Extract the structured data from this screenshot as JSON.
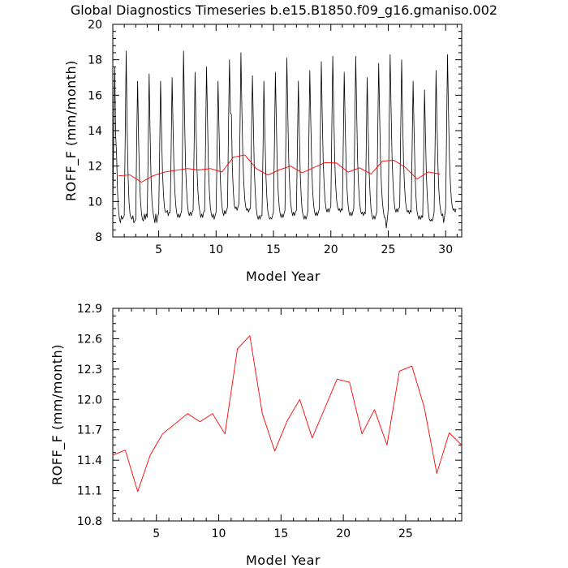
{
  "title": "Global Diagnostics Timeseries b.e15.B1850.f09_g16.gmaniso.002",
  "colors": {
    "monthly": "#000000",
    "annual": "#ff0000",
    "axes": "#000000"
  },
  "chart_data": [
    {
      "type": "line",
      "xlabel": "Model Year",
      "ylabel": "ROFF_F (mm/month)",
      "xlim": [
        1,
        31.4
      ],
      "ylim": [
        8,
        20
      ],
      "xticks": [
        5,
        10,
        15,
        20,
        25,
        30
      ],
      "yticks": [
        8,
        10,
        12,
        14,
        16,
        18,
        20
      ],
      "grid": false,
      "series": [
        {
          "color": "#000000",
          "x_start": 1.0,
          "x_step": 0.08333,
          "values": [
            9.3,
            14.0,
            17.6,
            13.8,
            12.6,
            10.5,
            9.5,
            9.0,
            8.8,
            9.2,
            9.0,
            9.1,
            9.2,
            13.6,
            18.5,
            14.1,
            11.4,
            10.0,
            9.3,
            9.1,
            9.0,
            9.2,
            8.8,
            8.9,
            9.0,
            13.6,
            16.8,
            13.5,
            11.2,
            10.0,
            9.3,
            9.0,
            8.9,
            9.3,
            9.0,
            9.3,
            9.1,
            12.8,
            17.2,
            13.8,
            11.4,
            10.0,
            9.4,
            9.1,
            8.8,
            9.3,
            8.8,
            9.2,
            9.3,
            13.0,
            16.8,
            13.9,
            11.6,
            10.4,
            9.7,
            9.4,
            9.4,
            9.5,
            9.2,
            9.4,
            9.4,
            12.8,
            17.0,
            14.1,
            11.8,
            10.5,
            9.7,
            9.3,
            9.1,
            9.3,
            9.1,
            9.3,
            9.5,
            13.4,
            18.5,
            14.9,
            12.1,
            10.8,
            9.9,
            9.4,
            9.2,
            9.4,
            9.2,
            9.4,
            9.5,
            13.0,
            17.3,
            14.4,
            11.9,
            10.6,
            9.8,
            9.4,
            9.1,
            9.3,
            9.1,
            9.4,
            9.5,
            13.2,
            17.6,
            14.7,
            11.9,
            10.6,
            9.7,
            9.3,
            9.1,
            9.3,
            9.0,
            9.2,
            9.4,
            12.8,
            16.8,
            14.3,
            11.9,
            10.6,
            9.8,
            9.4,
            9.2,
            9.5,
            9.3,
            9.5,
            9.7,
            14.2,
            18.0,
            15.0,
            14.9,
            12.0,
            10.6,
            9.8,
            9.6,
            9.7,
            9.5,
            9.7,
            9.9,
            14.2,
            18.4,
            15.2,
            12.5,
            11.0,
            10.1,
            9.7,
            9.5,
            9.6,
            9.4,
            9.6,
            9.6,
            13.6,
            17.1,
            14.3,
            11.8,
            10.5,
            9.6,
            9.2,
            9.0,
            9.2,
            9.0,
            9.2,
            9.2,
            12.8,
            16.8,
            14.0,
            11.6,
            10.3,
            9.5,
            9.2,
            9.0,
            9.1,
            9.0,
            9.2,
            9.4,
            13.2,
            17.3,
            14.4,
            11.9,
            10.5,
            9.7,
            9.3,
            9.1,
            9.3,
            9.1,
            9.3,
            9.5,
            13.6,
            18.1,
            14.9,
            12.2,
            10.8,
            9.9,
            9.5,
            9.2,
            9.4,
            9.2,
            9.4,
            9.5,
            13.0,
            16.8,
            14.0,
            11.6,
            10.3,
            9.5,
            9.2,
            9.0,
            9.2,
            9.0,
            9.2,
            9.5,
            13.4,
            17.4,
            14.5,
            12.0,
            10.6,
            9.8,
            9.4,
            9.2,
            9.4,
            9.2,
            9.4,
            9.6,
            13.8,
            17.9,
            14.9,
            12.3,
            10.9,
            10.0,
            9.6,
            9.4,
            9.6,
            9.4,
            9.6,
            9.7,
            14.0,
            18.2,
            15.1,
            12.4,
            11.0,
            10.1,
            9.7,
            9.5,
            9.6,
            9.4,
            9.6,
            9.5,
            13.4,
            17.3,
            14.4,
            11.9,
            10.6,
            9.8,
            9.4,
            9.2,
            9.4,
            9.2,
            9.4,
            9.6,
            14.0,
            18.2,
            15.0,
            12.3,
            10.9,
            10.0,
            9.5,
            9.3,
            9.4,
            9.2,
            9.4,
            9.3,
            13.2,
            17.0,
            14.1,
            11.7,
            10.4,
            9.6,
            9.2,
            9.0,
            9.2,
            9.0,
            9.2,
            9.4,
            13.8,
            17.8,
            14.8,
            12.2,
            10.8,
            9.9,
            9.4,
            9.1,
            9.1,
            8.5,
            9.0,
            9.6,
            14.2,
            18.3,
            15.2,
            12.4,
            11.0,
            10.1,
            9.6,
            9.4,
            9.6,
            9.4,
            9.6,
            9.7,
            13.9,
            18.0,
            14.9,
            12.3,
            10.9,
            10.0,
            9.6,
            9.4,
            9.5,
            9.3,
            9.5,
            9.4,
            13.0,
            16.8,
            14.0,
            11.6,
            10.3,
            9.5,
            9.2,
            9.0,
            9.2,
            9.0,
            9.2,
            9.1,
            12.4,
            16.3,
            13.6,
            11.3,
            10.1,
            9.4,
            9.0,
            8.9,
            9.0,
            8.9,
            9.1,
            9.4,
            13.2,
            17.4,
            14.3,
            11.9,
            10.6,
            9.8,
            9.4,
            9.2,
            9.3,
            8.8,
            9.2,
            9.6,
            14.1,
            18.3,
            15.1,
            12.4,
            11.0,
            10.1,
            9.7,
            9.5,
            9.6,
            9.4,
            9.6
          ]
        },
        {
          "color": "#ff0000",
          "x": [
            1.5,
            2.5,
            3.5,
            4.5,
            5.5,
            6.5,
            7.5,
            8.5,
            9.5,
            10.5,
            11.5,
            12.5,
            13.5,
            14.5,
            15.5,
            16.5,
            17.5,
            18.5,
            19.5,
            20.5,
            21.5,
            22.5,
            23.5,
            24.5,
            25.5,
            26.5,
            27.5,
            28.5,
            29.5
          ],
          "values": [
            11.45,
            11.5,
            11.09,
            11.45,
            11.66,
            11.76,
            11.86,
            11.78,
            11.86,
            11.66,
            12.5,
            12.63,
            11.86,
            11.49,
            11.79,
            12.0,
            11.62,
            11.91,
            12.2,
            12.17,
            11.66,
            11.9,
            11.55,
            12.28,
            12.33,
            11.92,
            11.27,
            11.67,
            11.55
          ]
        }
      ]
    },
    {
      "type": "line",
      "xlabel": "Model Year",
      "ylabel": "ROFF_F (mm/month)",
      "xlim": [
        1.5,
        29.5
      ],
      "ylim": [
        10.8,
        12.9
      ],
      "xticks": [
        5,
        10,
        15,
        20,
        25
      ],
      "yticks": [
        10.8,
        11.1,
        11.4,
        11.7,
        12.0,
        12.3,
        12.6,
        12.9
      ],
      "grid": false,
      "series": [
        {
          "color": "#ff0000",
          "x": [
            1.5,
            2.5,
            3.5,
            4.5,
            5.5,
            6.5,
            7.5,
            8.5,
            9.5,
            10.5,
            11.5,
            12.5,
            13.5,
            14.5,
            15.5,
            16.5,
            17.5,
            18.5,
            19.5,
            20.5,
            21.5,
            22.5,
            23.5,
            24.5,
            25.5,
            26.5,
            27.5,
            28.5,
            29.5
          ],
          "values": [
            11.45,
            11.5,
            11.09,
            11.45,
            11.66,
            11.76,
            11.86,
            11.78,
            11.86,
            11.66,
            12.5,
            12.63,
            11.86,
            11.49,
            11.79,
            12.0,
            11.62,
            11.91,
            12.2,
            12.17,
            11.66,
            11.9,
            11.55,
            12.28,
            12.33,
            11.92,
            11.27,
            11.67,
            11.55
          ]
        }
      ]
    }
  ]
}
